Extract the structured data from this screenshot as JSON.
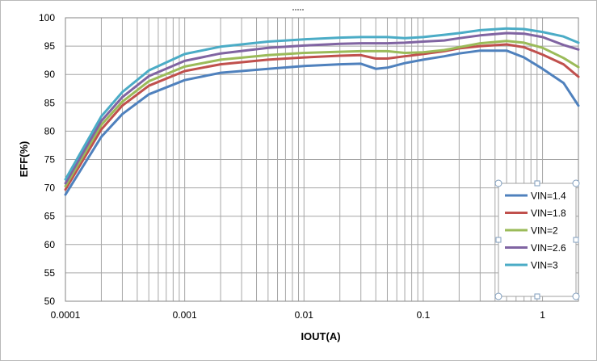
{
  "chart_data": {
    "type": "line",
    "title": "",
    "xlabel": "IOUT(A)",
    "ylabel": "EFF(%)",
    "xscale": "log",
    "xlim": [
      0.0001,
      2
    ],
    "ylim": [
      50,
      100
    ],
    "x_ticks": [
      0.0001,
      0.001,
      0.01,
      0.1,
      1
    ],
    "x_tick_labels": [
      "0.0001",
      "0.001",
      "0.01",
      "0.1",
      "1"
    ],
    "y_ticks": [
      50,
      55,
      60,
      65,
      70,
      75,
      80,
      85,
      90,
      95,
      100
    ],
    "y_tick_labels": [
      "50",
      "55",
      "60",
      "65",
      "70",
      "75",
      "80",
      "85",
      "90",
      "95",
      "100"
    ],
    "grid": "on",
    "legend_position": "right",
    "colors": {
      "axis_text": "#000000",
      "grid": "#a6a6a6",
      "plot_border": "#868686"
    },
    "x": [
      0.0001,
      0.0002,
      0.0003,
      0.0005,
      0.001,
      0.002,
      0.005,
      0.01,
      0.02,
      0.03,
      0.04,
      0.05,
      0.07,
      0.1,
      0.15,
      0.2,
      0.3,
      0.5,
      0.7,
      1,
      1.5,
      2
    ],
    "series": [
      {
        "name": "VIN=1.4",
        "color": "#4f81bd",
        "values": [
          68.8,
          79.0,
          83.0,
          86.5,
          89.0,
          90.3,
          91.0,
          91.5,
          91.8,
          91.9,
          91.0,
          91.2,
          92.0,
          92.6,
          93.2,
          93.7,
          94.2,
          94.2,
          93.0,
          91.0,
          88.5,
          84.5
        ]
      },
      {
        "name": "VIN=1.8",
        "color": "#c0504d",
        "values": [
          69.7,
          80.3,
          84.5,
          88.0,
          90.6,
          91.8,
          92.6,
          93.0,
          93.3,
          93.4,
          92.8,
          92.8,
          93.2,
          93.6,
          94.1,
          94.6,
          95.0,
          95.3,
          94.8,
          93.5,
          91.8,
          89.6
        ]
      },
      {
        "name": "VIN=2",
        "color": "#9bbb59",
        "values": [
          70.3,
          81.1,
          85.2,
          88.8,
          91.4,
          92.6,
          93.4,
          93.8,
          94.0,
          94.1,
          94.1,
          94.1,
          93.8,
          93.9,
          94.3,
          94.8,
          95.5,
          95.9,
          95.6,
          94.7,
          92.9,
          91.3
        ]
      },
      {
        "name": "VIN=2.6",
        "color": "#8064a2",
        "values": [
          70.8,
          81.8,
          86.0,
          89.7,
          92.4,
          93.7,
          94.7,
          95.1,
          95.4,
          95.5,
          95.5,
          95.5,
          95.6,
          95.8,
          96.0,
          96.4,
          96.9,
          97.3,
          97.2,
          96.6,
          95.2,
          94.4
        ]
      },
      {
        "name": "VIN=3",
        "color": "#4bacc6",
        "values": [
          71.5,
          82.6,
          86.9,
          90.7,
          93.6,
          94.9,
          95.8,
          96.2,
          96.5,
          96.6,
          96.6,
          96.6,
          96.4,
          96.6,
          97.0,
          97.3,
          97.8,
          98.1,
          98.0,
          97.5,
          96.7,
          95.6
        ]
      }
    ]
  }
}
